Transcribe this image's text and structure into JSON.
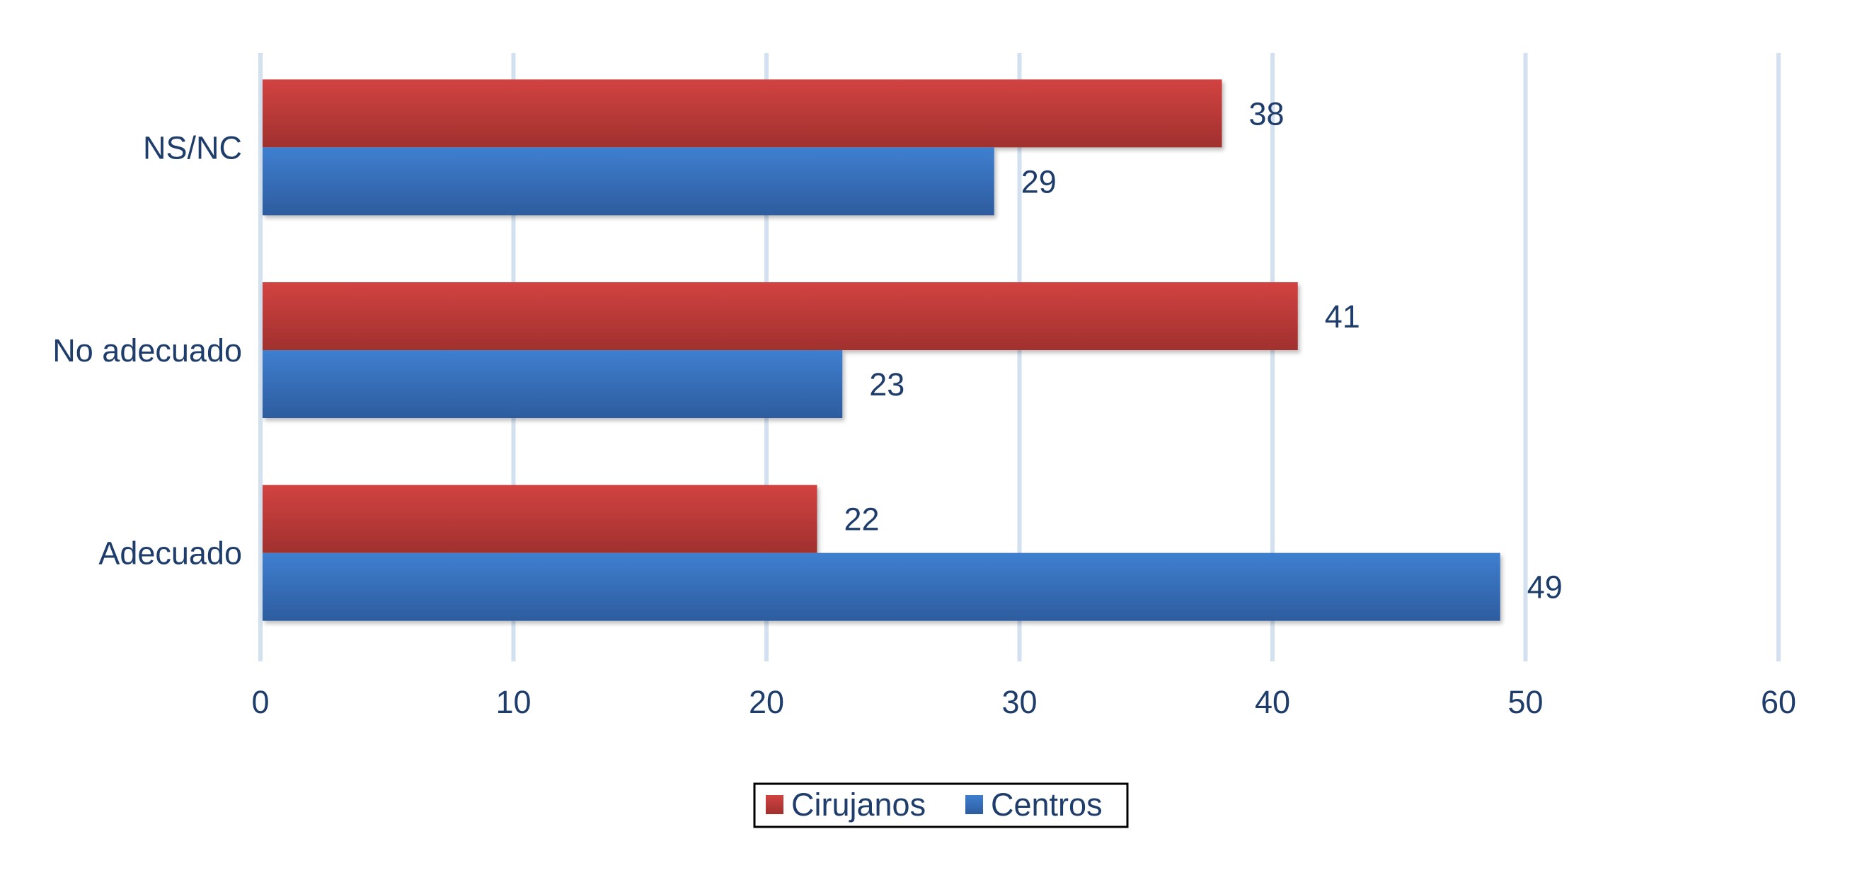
{
  "chart_data": {
    "type": "bar",
    "orientation": "horizontal",
    "categories": [
      "Adecuado",
      "No adecuado",
      "NS/NC"
    ],
    "series": [
      {
        "name": "Cirujanos",
        "values": [
          22,
          41,
          38
        ],
        "color": "#c23a38"
      },
      {
        "name": "Centros",
        "values": [
          49,
          23,
          29
        ],
        "color": "#3a74c0"
      }
    ],
    "xlim": [
      0,
      60
    ],
    "x_ticks": [
      0,
      10,
      20,
      30,
      40,
      50,
      60
    ],
    "grid": true,
    "legend_position": "bottom",
    "data_labels": true
  },
  "colors": {
    "text": "#1f3d6b",
    "grid": "#d3e0ef"
  }
}
